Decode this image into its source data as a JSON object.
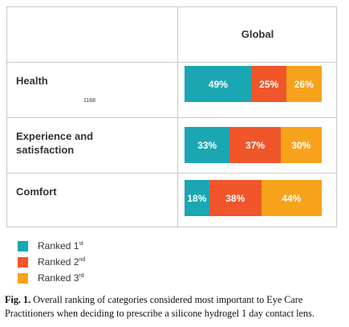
{
  "chart_data": {
    "type": "bar",
    "orientation": "horizontal",
    "stacked": true,
    "column_header": "Global",
    "categories": [
      {
        "label": "Health",
        "note": "1168"
      },
      {
        "label": "Experience and satisfaction",
        "note": ""
      },
      {
        "label": "Comfort",
        "note": ""
      }
    ],
    "series": [
      {
        "name": "Ranked 1st",
        "values": [
          49,
          33,
          18
        ],
        "labels": [
          "49%",
          "33%",
          "18%"
        ],
        "color": "#1aa7b2"
      },
      {
        "name": "Ranked 2nd",
        "values": [
          25,
          37,
          38
        ],
        "labels": [
          "25%",
          "37%",
          "38%"
        ],
        "color": "#f0562a"
      },
      {
        "name": "Ranked 3rd",
        "values": [
          26,
          30,
          44
        ],
        "labels": [
          "26%",
          "30%",
          "44%"
        ],
        "color": "#f7a21b"
      }
    ],
    "legend": [
      {
        "text": "Ranked 1",
        "sup": "st"
      },
      {
        "text": "Ranked 2",
        "sup": "nd"
      },
      {
        "text": "Ranked 3",
        "sup": "rd"
      }
    ],
    "legend_placement": "bottom-left",
    "xlim": [
      0,
      100
    ]
  },
  "caption": {
    "label": "Fig. 1.",
    "text": "Overall ranking of categories considered most important to Eye Care Practitioners when deciding to prescribe a silicone hydrogel 1 day contact lens."
  }
}
